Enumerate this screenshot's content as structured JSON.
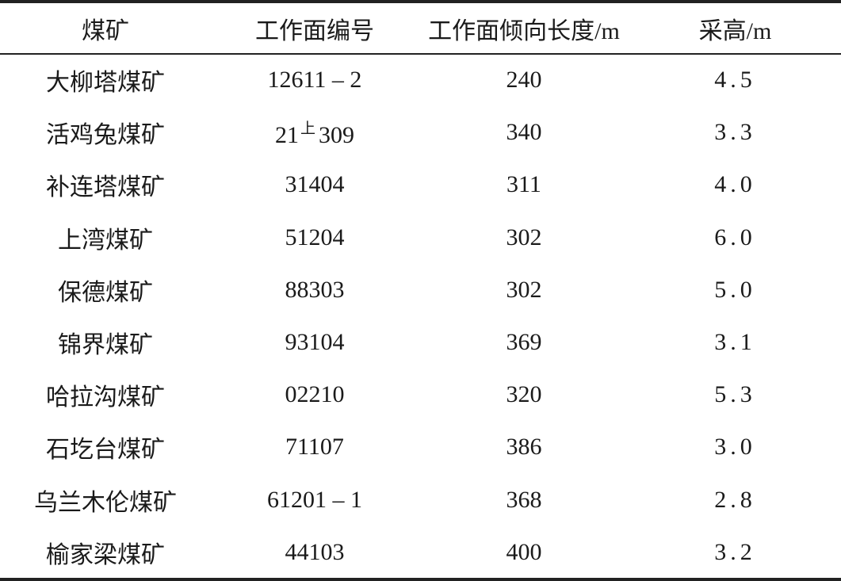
{
  "table": {
    "headers": [
      "煤矿",
      "工作面编号",
      "工作面倾向长度/m",
      "采高/m"
    ],
    "rows": [
      {
        "mine": "大柳塔煤矿",
        "face_id": "12611 – 2",
        "length": "240",
        "height": "4.5"
      },
      {
        "mine": "活鸡兔煤矿",
        "face_id_pre": "21",
        "face_id_sup": "上",
        "face_id": "309",
        "length": "340",
        "height": "3.3"
      },
      {
        "mine": "补连塔煤矿",
        "face_id": "31404",
        "length": "311",
        "height": "4.0"
      },
      {
        "mine": "上湾煤矿",
        "face_id": "51204",
        "length": "302",
        "height": "6.0"
      },
      {
        "mine": "保德煤矿",
        "face_id": "88303",
        "length": "302",
        "height": "5.0"
      },
      {
        "mine": "锦界煤矿",
        "face_id": "93104",
        "length": "369",
        "height": "3.1"
      },
      {
        "mine": "哈拉沟煤矿",
        "face_id": "02210",
        "length": "320",
        "height": "5.3"
      },
      {
        "mine": "石圪台煤矿",
        "face_id": "71107",
        "length": "386",
        "height": "3.0"
      },
      {
        "mine": "乌兰木伦煤矿",
        "face_id": "61201 – 1",
        "length": "368",
        "height": "2.8"
      },
      {
        "mine": "榆家梁煤矿",
        "face_id": "44103",
        "length": "400",
        "height": "3.2"
      }
    ]
  }
}
